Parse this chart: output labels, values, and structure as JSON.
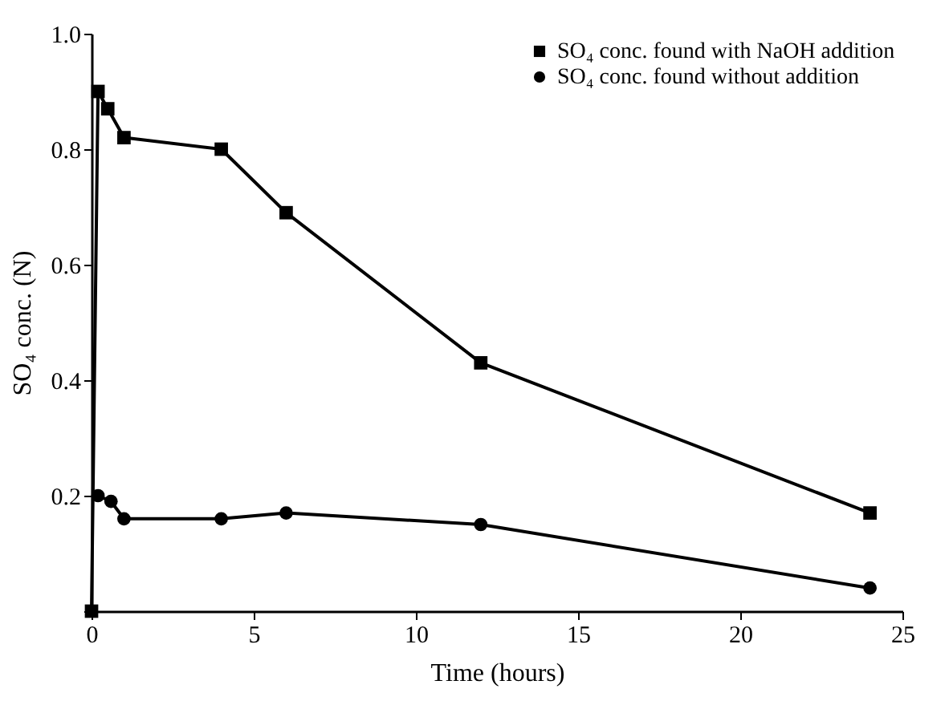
{
  "chart_data": {
    "type": "line",
    "xlabel": "Time (hours)",
    "ylabel": "SO₄ conc. (N)",
    "xlim": [
      0,
      25
    ],
    "xticks": [
      0,
      5,
      10,
      15,
      20,
      25
    ],
    "ylim": [
      0,
      1.0
    ],
    "yticks": [
      {
        "value": 0,
        "label": null
      },
      {
        "value": 0.2,
        "label": "0.2"
      },
      {
        "value": 0.4,
        "label": "0.4"
      },
      {
        "value": 0.6,
        "label": "0.6"
      },
      {
        "value": 0.8,
        "label": "0.8"
      },
      {
        "value": 1.0,
        "label": "1.0"
      }
    ],
    "grid": false,
    "legend": "top right",
    "series": [
      {
        "name": "SO₄ conc. found with NaOH addition",
        "color": "#000000",
        "marker": "square",
        "x": [
          0,
          0.2,
          0.5,
          1,
          4,
          6,
          12,
          24
        ],
        "values": [
          0,
          0.9,
          0.87,
          0.82,
          0.8,
          0.69,
          0.43,
          0.17
        ]
      },
      {
        "name": "SO₄ conc. found without addition",
        "color": "#000000",
        "marker": "circle",
        "x": [
          0.2,
          0.6,
          1,
          4,
          6,
          12,
          24
        ],
        "values": [
          0.2,
          0.19,
          0.16,
          0.16,
          0.17,
          0.15,
          0.04
        ]
      }
    ]
  }
}
